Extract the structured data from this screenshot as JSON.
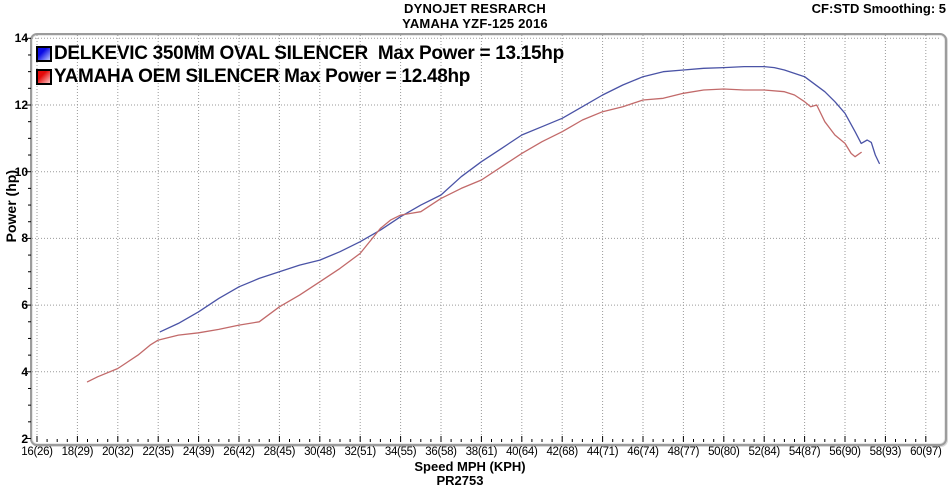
{
  "header": {
    "title_line1": "DYNOJET RESRARCH",
    "title_line2": "YAMAHA YZF-125 2016",
    "smoothing": "CF:STD Smoothing: 5"
  },
  "footer": {
    "run_id": "PR2753"
  },
  "chart_data": {
    "type": "line",
    "title": "DYNOJET RESRARCH",
    "subtitle": "YAMAHA YZF-125 2016",
    "xlabel": "Speed MPH (KPH)",
    "ylabel": "Power (hp)",
    "xlim_mph": [
      16,
      60
    ],
    "ylim": [
      2,
      14
    ],
    "x_tick_mph": [
      16,
      18,
      20,
      22,
      24,
      26,
      28,
      30,
      32,
      34,
      36,
      38,
      40,
      42,
      44,
      46,
      48,
      50,
      52,
      54,
      56,
      58,
      60
    ],
    "x_tick_labels": [
      "16(26)",
      "18(29)",
      "20(32)",
      "22(35)",
      "24(39)",
      "26(42)",
      "28(45)",
      "30(48)",
      "32(51)",
      "34(55)",
      "36(58)",
      "38(61)",
      "40(64)",
      "42(68)",
      "44(71)",
      "46(74)",
      "48(77)",
      "50(80)",
      "52(84)",
      "54(87)",
      "56(90)",
      "58(93)",
      "60(97)"
    ],
    "y_ticks": [
      2,
      4,
      6,
      8,
      10,
      12,
      14
    ],
    "grid": "dotted gray at every labeled tick",
    "legend_position": "top-left inside plot",
    "colors": {
      "grid": "#9a9a9a",
      "frame": "#9c9c9c",
      "text": "#000000"
    },
    "series": [
      {
        "name": "DELKEVIC 350MM OVAL SILENCER",
        "legend_label": "DELKEVIC 350MM OVAL SILENCER  Max Power = 13.15hp",
        "max_power_hp": 13.15,
        "line_color": "#4a53a6",
        "swatch_gradient": [
          "#0a0ae4",
          "#bcc6ff"
        ],
        "points_mph_hp": [
          [
            22.1,
            5.2
          ],
          [
            23,
            5.45
          ],
          [
            24,
            5.8
          ],
          [
            25,
            6.2
          ],
          [
            26,
            6.55
          ],
          [
            27,
            6.8
          ],
          [
            28,
            7.0
          ],
          [
            29,
            7.2
          ],
          [
            30,
            7.35
          ],
          [
            31,
            7.6
          ],
          [
            32,
            7.9
          ],
          [
            33,
            8.25
          ],
          [
            34,
            8.65
          ],
          [
            35,
            9.0
          ],
          [
            36,
            9.3
          ],
          [
            37,
            9.85
          ],
          [
            38,
            10.3
          ],
          [
            39,
            10.7
          ],
          [
            40,
            11.1
          ],
          [
            41,
            11.35
          ],
          [
            42,
            11.6
          ],
          [
            43,
            11.95
          ],
          [
            44,
            12.3
          ],
          [
            45,
            12.6
          ],
          [
            46,
            12.85
          ],
          [
            47,
            13.0
          ],
          [
            48,
            13.05
          ],
          [
            49,
            13.1
          ],
          [
            50,
            13.12
          ],
          [
            51,
            13.15
          ],
          [
            52,
            13.15
          ],
          [
            52.5,
            13.12
          ],
          [
            53,
            13.05
          ],
          [
            54,
            12.85
          ],
          [
            55,
            12.4
          ],
          [
            55.5,
            12.1
          ],
          [
            56,
            11.75
          ],
          [
            56.5,
            11.2
          ],
          [
            56.8,
            10.85
          ],
          [
            57.1,
            10.95
          ],
          [
            57.3,
            10.88
          ],
          [
            57.5,
            10.5
          ],
          [
            57.7,
            10.25
          ]
        ]
      },
      {
        "name": "YAMAHA OEM SILENCER",
        "legend_label": "YAMAHA OEM SILENCER Max Power = 12.48hp",
        "max_power_hp": 12.48,
        "line_color": "#c26a6a",
        "swatch_gradient": [
          "#e40a0a",
          "#ffc6c6"
        ],
        "points_mph_hp": [
          [
            18.5,
            3.7
          ],
          [
            19,
            3.85
          ],
          [
            20,
            4.1
          ],
          [
            21,
            4.5
          ],
          [
            21.6,
            4.8
          ],
          [
            22,
            4.95
          ],
          [
            23,
            5.1
          ],
          [
            24,
            5.17
          ],
          [
            25,
            5.27
          ],
          [
            26,
            5.4
          ],
          [
            27,
            5.5
          ],
          [
            28,
            5.95
          ],
          [
            29,
            6.3
          ],
          [
            30,
            6.7
          ],
          [
            31,
            7.1
          ],
          [
            32,
            7.55
          ],
          [
            33,
            8.3
          ],
          [
            33.5,
            8.55
          ],
          [
            34,
            8.7
          ],
          [
            34.5,
            8.75
          ],
          [
            35,
            8.8
          ],
          [
            35.5,
            9.0
          ],
          [
            36,
            9.2
          ],
          [
            37,
            9.5
          ],
          [
            38,
            9.75
          ],
          [
            39,
            10.15
          ],
          [
            40,
            10.55
          ],
          [
            41,
            10.9
          ],
          [
            42,
            11.2
          ],
          [
            43,
            11.55
          ],
          [
            44,
            11.8
          ],
          [
            45,
            11.95
          ],
          [
            46,
            12.15
          ],
          [
            47,
            12.2
          ],
          [
            48,
            12.35
          ],
          [
            49,
            12.45
          ],
          [
            50,
            12.48
          ],
          [
            51,
            12.45
          ],
          [
            52,
            12.45
          ],
          [
            53,
            12.4
          ],
          [
            53.5,
            12.3
          ],
          [
            54,
            12.1
          ],
          [
            54.3,
            11.95
          ],
          [
            54.6,
            12.0
          ],
          [
            55,
            11.5
          ],
          [
            55.5,
            11.1
          ],
          [
            56,
            10.85
          ],
          [
            56.3,
            10.55
          ],
          [
            56.5,
            10.45
          ],
          [
            56.8,
            10.58
          ]
        ]
      }
    ]
  }
}
